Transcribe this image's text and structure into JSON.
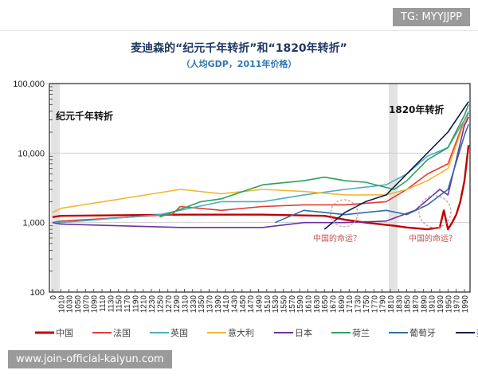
{
  "watermarks": {
    "top": "TG: MYYJJPP",
    "bottom": "www.join-official-kaiyun.com"
  },
  "chart_data": {
    "type": "line",
    "title": "麦迪森的“纪元千年转折”和“1820年转折”",
    "subtitle": "（人均GDP，2011年价格）",
    "y_scale": "log",
    "ylim": [
      100,
      100000
    ],
    "y_ticks": [
      "100",
      "1,000",
      "10,000",
      "100,000"
    ],
    "y_tick_values": [
      100,
      1000,
      10000,
      100000
    ],
    "x_ticks": [
      "0",
      "1010",
      "1030",
      "1050",
      "1070",
      "1090",
      "1110",
      "1130",
      "1150",
      "1170",
      "1190",
      "1210",
      "1230",
      "1250",
      "1270",
      "1290",
      "1310",
      "1330",
      "1350",
      "1370",
      "1390",
      "1410",
      "1430",
      "1450",
      "1470",
      "1490",
      "1510",
      "1530",
      "1550",
      "1570",
      "1590",
      "1610",
      "1630",
      "1650",
      "1670",
      "1690",
      "1710",
      "1730",
      "1750",
      "1770",
      "1790",
      "1810",
      "1830",
      "1850",
      "1870",
      "1890",
      "1910",
      "1930",
      "1950",
      "1970",
      "1990"
    ],
    "grid": "horizontal",
    "legend_placement": "bottom",
    "annotations": [
      {
        "text": "纪元千年转折",
        "year": 0
      },
      {
        "text": "1820年转折",
        "year": 1820
      },
      {
        "text": "中国的命运？",
        "year": 1700
      },
      {
        "text": "中国的命运？",
        "year": 1950
      }
    ],
    "shaded_periods": [
      [
        0,
        1010
      ],
      [
        1810,
        1820
      ]
    ],
    "series": [
      {
        "name": "中国",
        "color": "#c00000",
        "x": [
          0,
          1010,
          1300,
          1500,
          1650,
          1700,
          1750,
          1820,
          1850,
          1900,
          1930,
          1940,
          1950,
          1960,
          1970,
          1980,
          1990,
          2000
        ],
        "y": [
          1200,
          1250,
          1300,
          1300,
          1250,
          1100,
          1000,
          900,
          850,
          800,
          850,
          1500,
          800,
          1000,
          1300,
          2000,
          4000,
          13000
        ]
      },
      {
        "name": "法国",
        "color": "#e03c31",
        "x": [
          0,
          1010,
          1280,
          1300,
          1400,
          1500,
          1600,
          1700,
          1800,
          1850,
          1900,
          1950,
          1990,
          2000
        ],
        "y": [
          1000,
          1050,
          1300,
          1700,
          1500,
          1700,
          1800,
          1800,
          2000,
          3000,
          5000,
          7000,
          30000,
          38000
        ]
      },
      {
        "name": "英国",
        "color": "#4bacc6",
        "x": [
          0,
          1010,
          1250,
          1400,
          1500,
          1600,
          1700,
          1800,
          1850,
          1900,
          1950,
          1990,
          2000
        ],
        "y": [
          1000,
          1000,
          1300,
          2000,
          2000,
          2500,
          3000,
          3500,
          5000,
          9000,
          12000,
          30000,
          40000
        ]
      },
      {
        "name": "意大利",
        "color": "#f2b632",
        "x": [
          0,
          1010,
          1300,
          1400,
          1500,
          1600,
          1700,
          1800,
          1850,
          1900,
          1950,
          1990,
          2000
        ],
        "y": [
          1400,
          1600,
          3000,
          2600,
          3000,
          2800,
          2500,
          2500,
          3000,
          4000,
          6000,
          28000,
          35000
        ]
      },
      {
        "name": "日本",
        "color": "#7030a0",
        "x": [
          0,
          1010,
          1300,
          1500,
          1600,
          1700,
          1800,
          1870,
          1930,
          1950,
          1990,
          2000
        ],
        "y": [
          1000,
          950,
          850,
          850,
          1000,
          1000,
          1050,
          1500,
          3000,
          2500,
          25000,
          33000
        ]
      },
      {
        "name": "荷兰",
        "color": "#2ca05a",
        "x": [
          1250,
          1350,
          1400,
          1500,
          1600,
          1650,
          1700,
          1750,
          1800,
          1820,
          1850,
          1900,
          1950,
          1990,
          2000
        ],
        "y": [
          1200,
          2000,
          2200,
          3500,
          4000,
          4500,
          4000,
          3800,
          3200,
          3000,
          4000,
          8000,
          12000,
          35000,
          50000
        ]
      },
      {
        "name": "葡萄牙",
        "color": "#2e6da4",
        "x": [
          1530,
          1600,
          1700,
          1800,
          1850,
          1900,
          1950,
          1990,
          2000
        ],
        "y": [
          1000,
          1500,
          1300,
          1500,
          1300,
          1800,
          3000,
          18000,
          26000
        ]
      },
      {
        "name": "美国",
        "color": "#0d1b4c",
        "x": [
          1650,
          1700,
          1750,
          1800,
          1850,
          1900,
          1950,
          1990,
          2000
        ],
        "y": [
          800,
          1400,
          2000,
          2500,
          5000,
          10000,
          20000,
          45000,
          55000
        ]
      }
    ]
  }
}
